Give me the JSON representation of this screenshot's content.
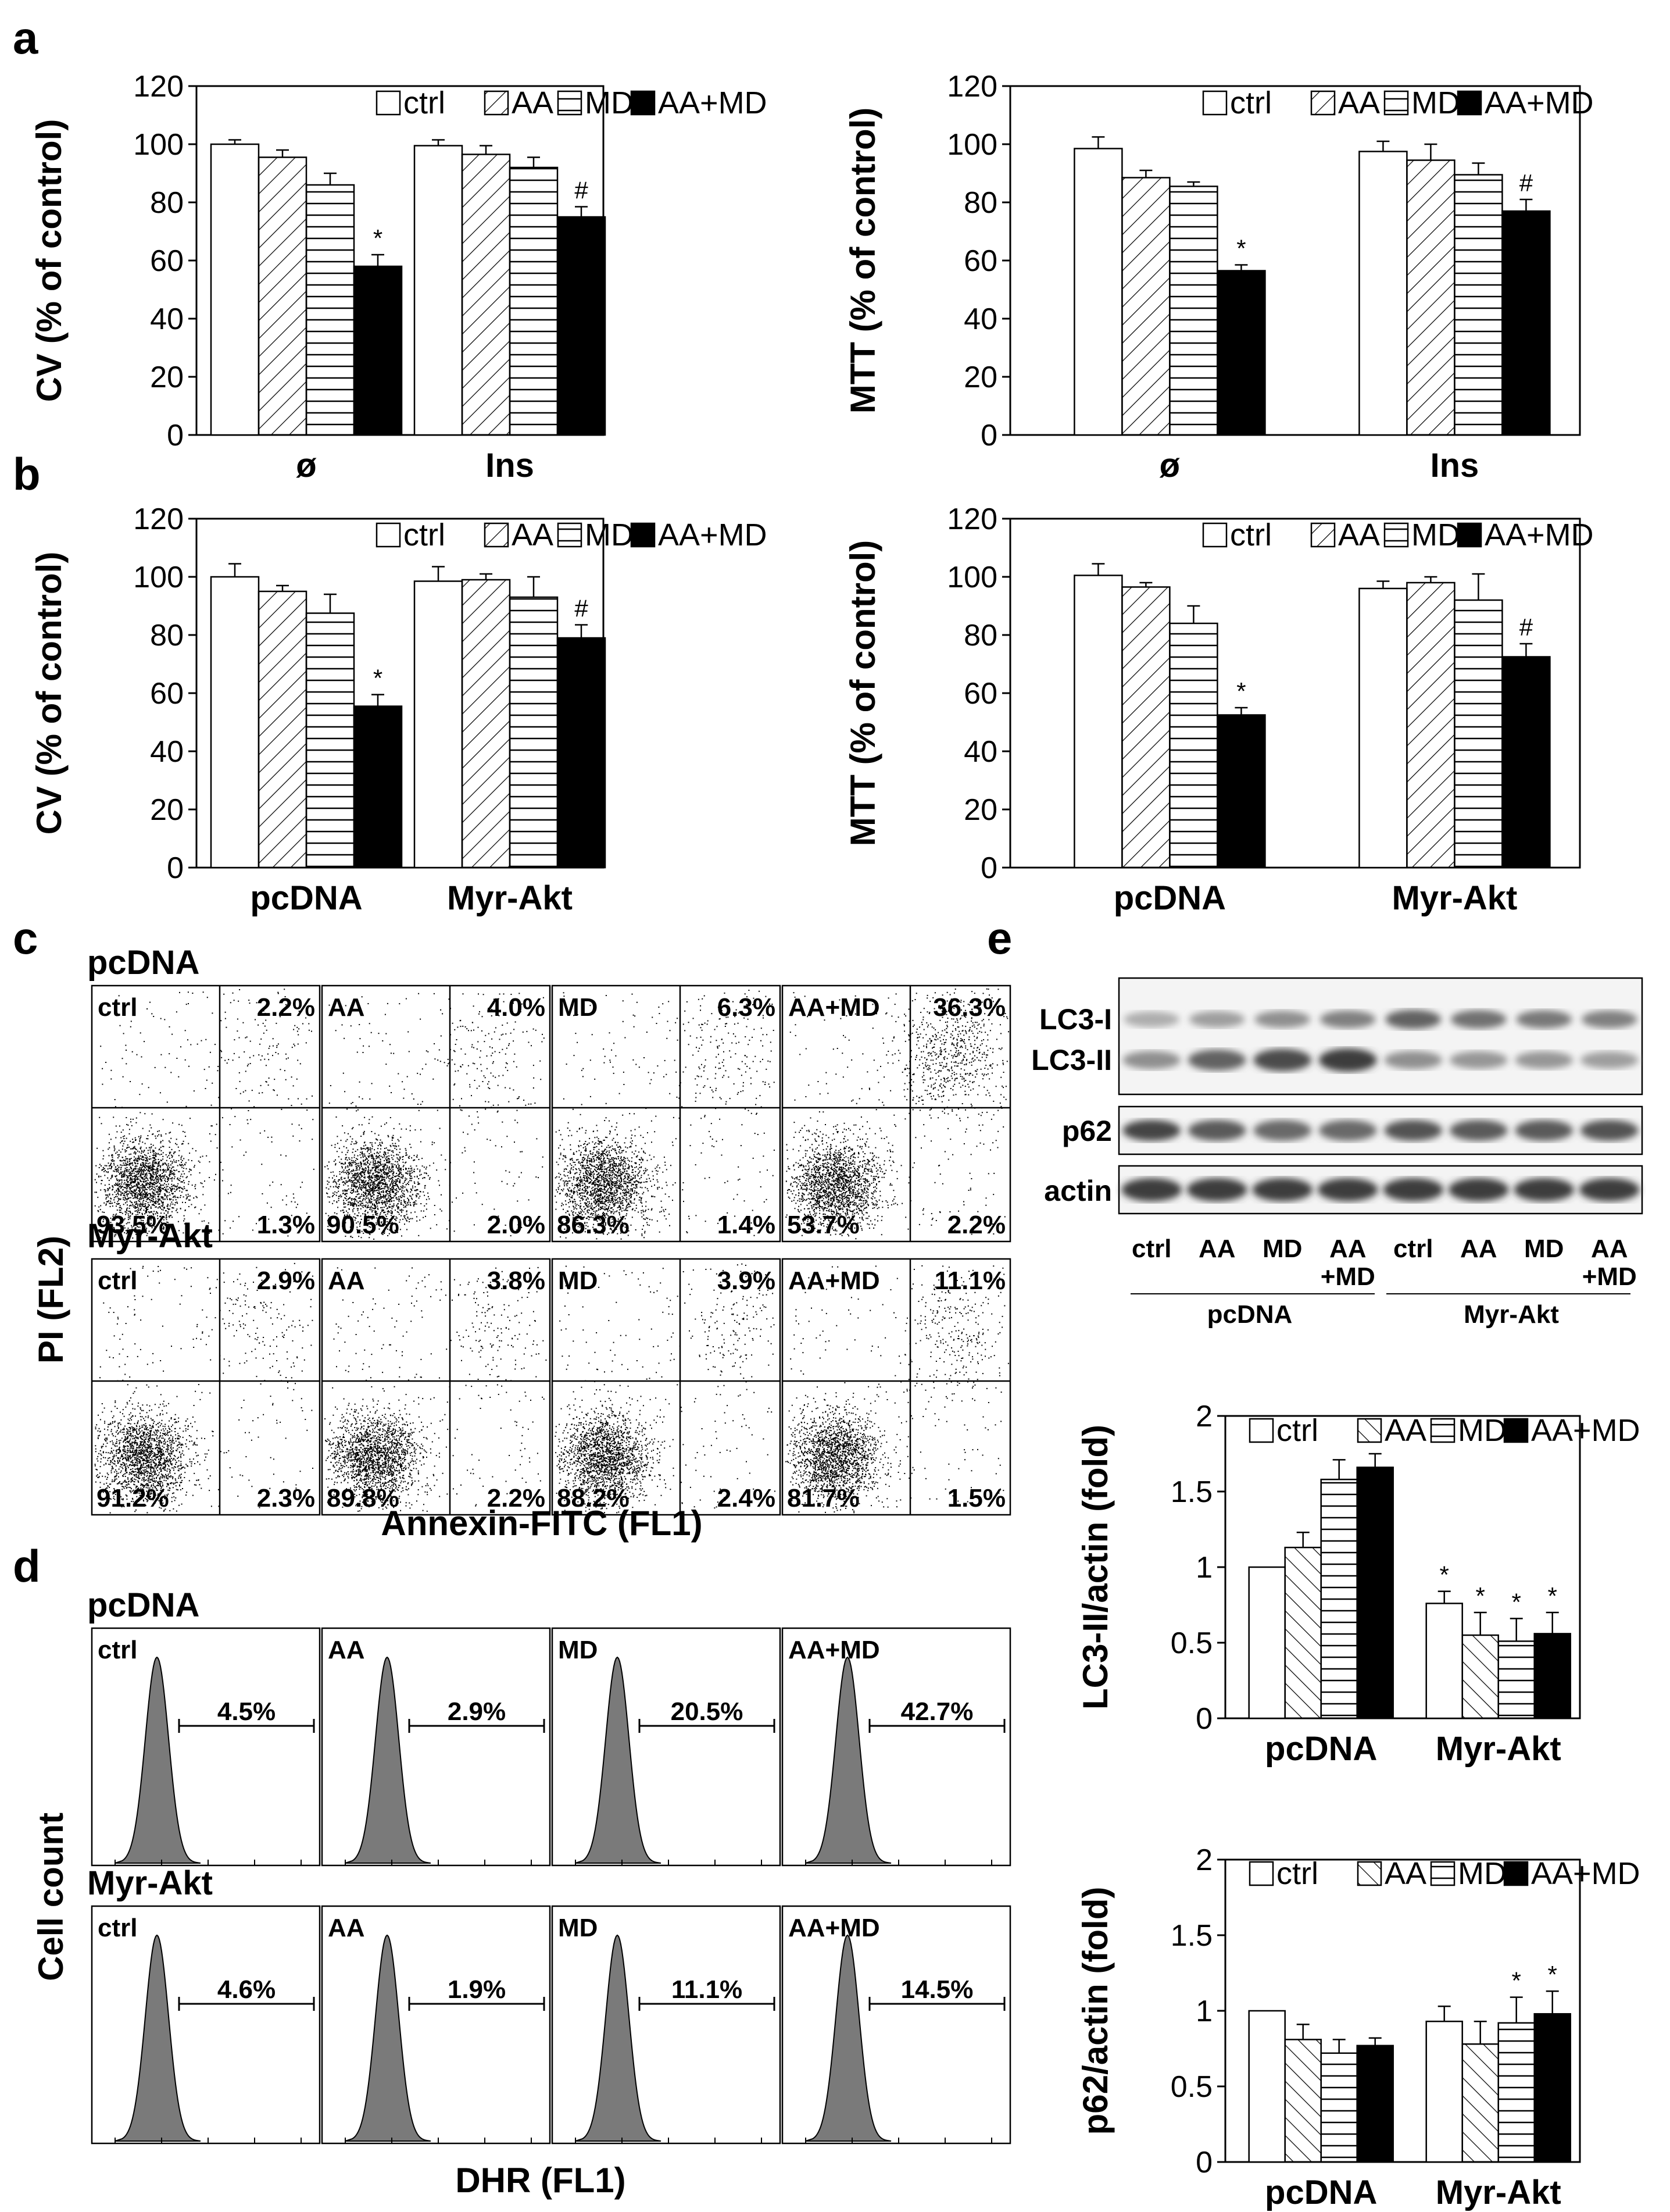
{
  "panels": {
    "a": "a",
    "b": "b",
    "c": "c",
    "d": "d",
    "e": "e"
  },
  "legend": [
    "ctrl",
    "AA",
    "MD",
    "AA+MD"
  ],
  "colors": {
    "ink": "#000000",
    "bg": "#ffffff",
    "hist": "#7a7a7a"
  },
  "chart_data": [
    {
      "id": "a-cv",
      "type": "bar",
      "ylabel": "CV (% of control)",
      "ylim": [
        0,
        120
      ],
      "yticks": [
        0,
        20,
        40,
        60,
        80,
        100,
        120
      ],
      "categories": [
        "ø",
        "Ins"
      ],
      "series": [
        {
          "name": "ctrl",
          "values": [
            100,
            99.5
          ]
        },
        {
          "name": "AA",
          "values": [
            95.5,
            96.5
          ]
        },
        {
          "name": "MD",
          "values": [
            86,
            92
          ]
        },
        {
          "name": "AA+MD",
          "values": [
            58,
            75
          ]
        }
      ],
      "errors": [
        [
          1.5,
          2
        ],
        [
          2.5,
          3
        ],
        [
          4,
          3.5
        ],
        [
          4,
          3.5
        ]
      ],
      "marks": [
        [
          null,
          null
        ],
        [
          null,
          null
        ],
        [
          null,
          null
        ],
        [
          "*",
          "#"
        ]
      ]
    },
    {
      "id": "a-mtt",
      "type": "bar",
      "ylabel": "MTT (% of control)",
      "ylim": [
        0,
        120
      ],
      "yticks": [
        0,
        20,
        40,
        60,
        80,
        100,
        120
      ],
      "categories": [
        "ø",
        "Ins"
      ],
      "series": [
        {
          "name": "ctrl",
          "values": [
            98.5,
            97.5
          ]
        },
        {
          "name": "AA",
          "values": [
            88.5,
            94.5
          ]
        },
        {
          "name": "MD",
          "values": [
            85.5,
            89.5
          ]
        },
        {
          "name": "AA+MD",
          "values": [
            56.5,
            77
          ]
        }
      ],
      "errors": [
        [
          4,
          3.5
        ],
        [
          2.5,
          5.5
        ],
        [
          1.5,
          4
        ],
        [
          2,
          4
        ]
      ],
      "marks": [
        [
          null,
          null
        ],
        [
          null,
          null
        ],
        [
          null,
          null
        ],
        [
          "*",
          "#"
        ]
      ]
    },
    {
      "id": "b-cv",
      "type": "bar",
      "ylabel": "CV (% of control)",
      "ylim": [
        0,
        120
      ],
      "yticks": [
        0,
        20,
        40,
        60,
        80,
        100,
        120
      ],
      "categories": [
        "pcDNA",
        "Myr-Akt"
      ],
      "series": [
        {
          "name": "ctrl",
          "values": [
            100,
            98.5
          ]
        },
        {
          "name": "AA",
          "values": [
            95,
            99
          ]
        },
        {
          "name": "MD",
          "values": [
            87.5,
            93
          ]
        },
        {
          "name": "AA+MD",
          "values": [
            55.5,
            79
          ]
        }
      ],
      "errors": [
        [
          4.5,
          5
        ],
        [
          2,
          2
        ],
        [
          6.5,
          7
        ],
        [
          4,
          4.5
        ]
      ],
      "marks": [
        [
          null,
          null
        ],
        [
          null,
          null
        ],
        [
          null,
          null
        ],
        [
          "*",
          "#"
        ]
      ]
    },
    {
      "id": "b-mtt",
      "type": "bar",
      "ylabel": "MTT (% of control)",
      "ylim": [
        0,
        120
      ],
      "yticks": [
        0,
        20,
        40,
        60,
        80,
        100,
        120
      ],
      "categories": [
        "pcDNA",
        "Myr-Akt"
      ],
      "series": [
        {
          "name": "ctrl",
          "values": [
            100.5,
            96
          ]
        },
        {
          "name": "AA",
          "values": [
            96.5,
            98
          ]
        },
        {
          "name": "MD",
          "values": [
            84,
            92
          ]
        },
        {
          "name": "AA+MD",
          "values": [
            52.5,
            72.5
          ]
        }
      ],
      "errors": [
        [
          4,
          2.5
        ],
        [
          1.5,
          2
        ],
        [
          6,
          9
        ],
        [
          2.5,
          4.5
        ]
      ],
      "marks": [
        [
          null,
          null
        ],
        [
          null,
          null
        ],
        [
          null,
          null
        ],
        [
          "*",
          "#"
        ]
      ]
    },
    {
      "id": "e-lc3",
      "type": "bar",
      "ylabel": "LC3-II/actin (fold)",
      "ylim": [
        0,
        2
      ],
      "yticks": [
        0,
        0.5,
        1,
        1.5,
        2
      ],
      "yticklabels": [
        "0",
        "0.5",
        "1",
        "1.5",
        "2"
      ],
      "categories": [
        "pcDNA",
        "Myr-Akt"
      ],
      "series": [
        {
          "name": "ctrl",
          "values": [
            1.0,
            0.76
          ]
        },
        {
          "name": "AA",
          "values": [
            1.13,
            0.55
          ]
        },
        {
          "name": "MD",
          "values": [
            1.58,
            0.51
          ]
        },
        {
          "name": "AA+MD",
          "values": [
            1.66,
            0.56
          ]
        }
      ],
      "errors": [
        [
          0,
          0.08
        ],
        [
          0.1,
          0.15
        ],
        [
          0.13,
          0.15
        ],
        [
          0.09,
          0.14
        ]
      ],
      "marks": [
        [
          null,
          "*"
        ],
        [
          null,
          "*"
        ],
        [
          null,
          "*"
        ],
        [
          null,
          "*"
        ]
      ]
    },
    {
      "id": "e-p62",
      "type": "bar",
      "ylabel": "p62/actin (fold)",
      "ylim": [
        0,
        2
      ],
      "yticks": [
        0,
        0.5,
        1,
        1.5,
        2
      ],
      "yticklabels": [
        "0",
        "0.5",
        "1",
        "1.5",
        "2"
      ],
      "categories": [
        "pcDNA",
        "Myr-Akt"
      ],
      "series": [
        {
          "name": "ctrl",
          "values": [
            1.0,
            0.93
          ]
        },
        {
          "name": "AA",
          "values": [
            0.81,
            0.78
          ]
        },
        {
          "name": "MD",
          "values": [
            0.72,
            0.92
          ]
        },
        {
          "name": "AA+MD",
          "values": [
            0.77,
            0.98
          ]
        }
      ],
      "errors": [
        [
          0,
          0.1
        ],
        [
          0.1,
          0.15
        ],
        [
          0.09,
          0.17
        ],
        [
          0.05,
          0.15
        ]
      ],
      "marks": [
        [
          null,
          null
        ],
        [
          null,
          null
        ],
        [
          null,
          "*"
        ],
        [
          null,
          "*"
        ]
      ]
    }
  ],
  "flow_c": {
    "xlabel": "Annexin-FITC (FL1)",
    "ylabel": "PI (FL2)",
    "rows": [
      {
        "title": "pcDNA",
        "plots": [
          {
            "name": "ctrl",
            "ul": "",
            "ur": "2.2%",
            "ll": "93.5%",
            "lr": "1.3%",
            "ur_pop": 0.02
          },
          {
            "name": "AA",
            "ul": "",
            "ur": "4.0%",
            "ll": "90.5%",
            "lr": "2.0%",
            "ur_pop": 0.04
          },
          {
            "name": "MD",
            "ul": "",
            "ur": "6.3%",
            "ll": "86.3%",
            "lr": "1.4%",
            "ur_pop": 0.06
          },
          {
            "name": "AA+MD",
            "ul": "",
            "ur": "36.3%",
            "ll": "53.7%",
            "lr": "2.2%",
            "ur_pop": 0.36
          }
        ]
      },
      {
        "title": "Myr-Akt",
        "plots": [
          {
            "name": "ctrl",
            "ul": "",
            "ur": "2.9%",
            "ll": "91.2%",
            "lr": "2.3%",
            "ur_pop": 0.03
          },
          {
            "name": "AA",
            "ul": "",
            "ur": "3.8%",
            "ll": "89.8%",
            "lr": "2.2%",
            "ur_pop": 0.04
          },
          {
            "name": "MD",
            "ul": "",
            "ur": "3.9%",
            "ll": "88.2%",
            "lr": "2.4%",
            "ur_pop": 0.04
          },
          {
            "name": "AA+MD",
            "ul": "",
            "ur": "11.1%",
            "ll": "81.7%",
            "lr": "1.5%",
            "ur_pop": 0.11
          }
        ]
      }
    ]
  },
  "hist_d": {
    "xlabel": "DHR (FL1)",
    "ylabel": "Cell count",
    "rows": [
      {
        "title": "pcDNA",
        "plots": [
          {
            "name": "ctrl",
            "pct": "4.5%"
          },
          {
            "name": "AA",
            "pct": "2.9%"
          },
          {
            "name": "MD",
            "pct": "20.5%"
          },
          {
            "name": "AA+MD",
            "pct": "42.7%"
          }
        ]
      },
      {
        "title": "Myr-Akt",
        "plots": [
          {
            "name": "ctrl",
            "pct": "4.6%"
          },
          {
            "name": "AA",
            "pct": "1.9%"
          },
          {
            "name": "MD",
            "pct": "11.1%"
          },
          {
            "name": "AA+MD",
            "pct": "14.5%"
          }
        ]
      }
    ]
  },
  "blot_e": {
    "rows": [
      "LC3-I",
      "LC3-II",
      "p62",
      "actin"
    ],
    "lanes": [
      "ctrl",
      "AA",
      "MD",
      "AA\n+MD",
      "ctrl",
      "AA",
      "MD",
      "AA\n+MD"
    ],
    "groups": [
      "pcDNA",
      "Myr-Akt"
    ],
    "lc3i": [
      0.25,
      0.35,
      0.45,
      0.55,
      0.75,
      0.65,
      0.6,
      0.55
    ],
    "lc3ii": [
      0.45,
      0.75,
      0.9,
      1.0,
      0.45,
      0.4,
      0.4,
      0.35
    ],
    "p62": [
      0.95,
      0.8,
      0.7,
      0.7,
      0.85,
      0.8,
      0.8,
      0.85
    ],
    "actin": [
      1,
      1,
      1,
      1,
      1,
      1,
      1,
      1
    ]
  }
}
